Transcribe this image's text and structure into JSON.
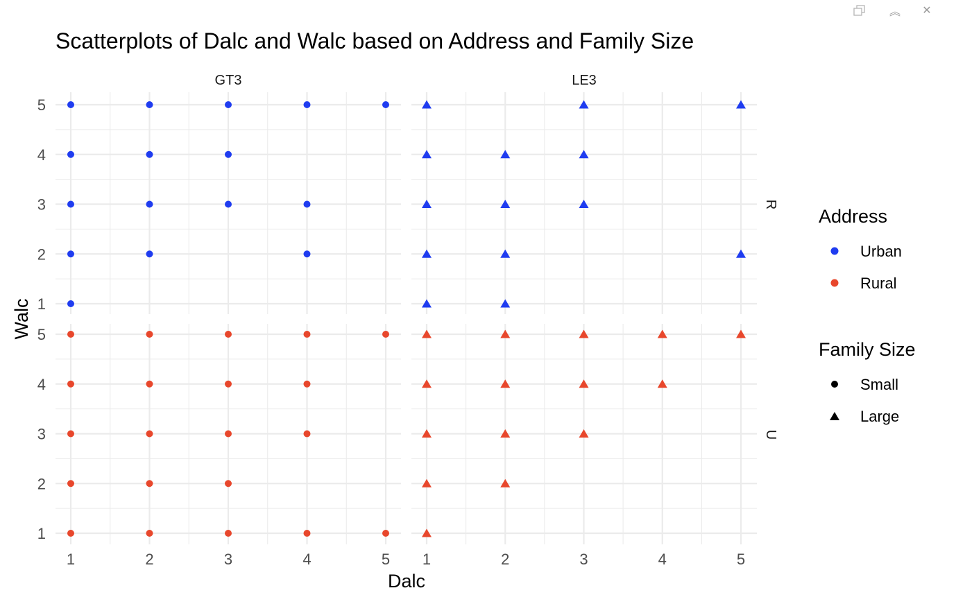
{
  "window": {
    "popout_icon": "popout-icon",
    "collapse_icon": "collapse-icon",
    "close_icon": "close-icon",
    "collapse_glyph": "︽",
    "close_glyph": "✕"
  },
  "chart_data": {
    "type": "scatter",
    "title": "Scatterplots of Dalc and Walc based on Address and Family Size",
    "xlabel": "Dalc",
    "ylabel": "Walc",
    "xlim": [
      1,
      5
    ],
    "ylim": [
      1,
      5
    ],
    "x_ticks": [
      "1",
      "2",
      "3",
      "4",
      "5"
    ],
    "y_ticks": [
      "1",
      "2",
      "3",
      "4",
      "5"
    ],
    "grid": true,
    "legend_placement": "right",
    "facet_cols": [
      "GT3",
      "LE3"
    ],
    "facet_rows": [
      "R",
      "U"
    ],
    "legends": [
      {
        "title": "Address",
        "items": [
          {
            "label": "Urban",
            "color": "#1f3cf0",
            "shape": "circle"
          },
          {
            "label": "Rural",
            "color": "#e8472c",
            "shape": "circle"
          }
        ]
      },
      {
        "title": "Family Size",
        "items": [
          {
            "label": "Small",
            "color": "#000000",
            "shape": "circle"
          },
          {
            "label": "Large",
            "color": "#000000",
            "shape": "triangle"
          }
        ]
      }
    ],
    "panels": [
      {
        "col": "GT3",
        "row": "R",
        "color": "#1f3cf0",
        "shape": "circle",
        "points": [
          [
            1,
            5
          ],
          [
            2,
            5
          ],
          [
            3,
            5
          ],
          [
            4,
            5
          ],
          [
            5,
            5
          ],
          [
            1,
            4
          ],
          [
            2,
            4
          ],
          [
            3,
            4
          ],
          [
            1,
            3
          ],
          [
            2,
            3
          ],
          [
            3,
            3
          ],
          [
            4,
            3
          ],
          [
            1,
            2
          ],
          [
            2,
            2
          ],
          [
            4,
            2
          ],
          [
            1,
            1
          ]
        ]
      },
      {
        "col": "LE3",
        "row": "R",
        "color": "#1f3cf0",
        "shape": "triangle",
        "points": [
          [
            1,
            5
          ],
          [
            3,
            5
          ],
          [
            5,
            5
          ],
          [
            1,
            4
          ],
          [
            2,
            4
          ],
          [
            3,
            4
          ],
          [
            1,
            3
          ],
          [
            2,
            3
          ],
          [
            3,
            3
          ],
          [
            1,
            2
          ],
          [
            2,
            2
          ],
          [
            5,
            2
          ],
          [
            1,
            1
          ],
          [
            2,
            1
          ]
        ]
      },
      {
        "col": "GT3",
        "row": "U",
        "color": "#e8472c",
        "shape": "circle",
        "points": [
          [
            1,
            5
          ],
          [
            2,
            5
          ],
          [
            3,
            5
          ],
          [
            4,
            5
          ],
          [
            5,
            5
          ],
          [
            1,
            4
          ],
          [
            2,
            4
          ],
          [
            3,
            4
          ],
          [
            4,
            4
          ],
          [
            1,
            3
          ],
          [
            2,
            3
          ],
          [
            3,
            3
          ],
          [
            4,
            3
          ],
          [
            1,
            2
          ],
          [
            2,
            2
          ],
          [
            3,
            2
          ],
          [
            1,
            1
          ],
          [
            2,
            1
          ],
          [
            3,
            1
          ],
          [
            4,
            1
          ],
          [
            5,
            1
          ]
        ]
      },
      {
        "col": "LE3",
        "row": "U",
        "color": "#e8472c",
        "shape": "triangle",
        "points": [
          [
            1,
            5
          ],
          [
            2,
            5
          ],
          [
            3,
            5
          ],
          [
            4,
            5
          ],
          [
            5,
            5
          ],
          [
            1,
            4
          ],
          [
            2,
            4
          ],
          [
            3,
            4
          ],
          [
            4,
            4
          ],
          [
            1,
            3
          ],
          [
            2,
            3
          ],
          [
            3,
            3
          ],
          [
            1,
            2
          ],
          [
            2,
            2
          ],
          [
            1,
            1
          ]
        ]
      }
    ]
  }
}
